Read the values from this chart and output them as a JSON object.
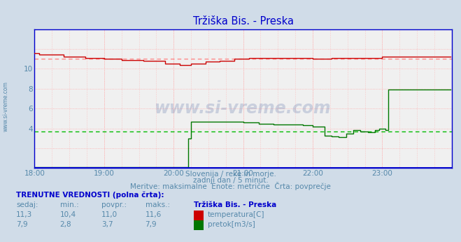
{
  "title": "Tržiška Bis. - Preska",
  "title_color": "#0000cc",
  "background_color": "#d0dce8",
  "plot_bg_color": "#f0f0f0",
  "xlim": [
    0,
    288
  ],
  "ylim_temp": [
    8,
    14
  ],
  "ylim_flow": [
    0,
    14
  ],
  "ytick_vals": [
    4,
    6,
    8,
    10
  ],
  "ytick_labels_left": [
    "4",
    "6",
    "8",
    "10"
  ],
  "xtick_labels": [
    "18:00",
    "19:00",
    "20:00",
    "21:00",
    "22:00",
    "23:00"
  ],
  "xtick_positions": [
    0,
    48,
    96,
    144,
    192,
    240
  ],
  "grid_color": "#ffaaaa",
  "temp_color": "#cc0000",
  "flow_color": "#007700",
  "avg_temp_color": "#ff8888",
  "avg_flow_color": "#00bb00",
  "avg_temp": 11.0,
  "avg_flow": 3.7,
  "border_color": "#0000cc",
  "baseline_color": "#0000cc",
  "subtitle1": "Slovenija / reke in morje.",
  "subtitle2": "zadnji dan / 5 minut.",
  "subtitle3": "Meritve: maksimalne  Enote: metrične  Črta: povprečje",
  "subtitle_color": "#5588aa",
  "table_header": "TRENUTNE VREDNOSTI (polna črta):",
  "col_headers": [
    "sedaj:",
    "min.:",
    "povpr.:",
    "maks.:",
    "Tržiška Bis. - Preska"
  ],
  "temp_row": [
    "11,3",
    "10,4",
    "11,0",
    "11,6",
    "temperatura[C]"
  ],
  "flow_row": [
    "7,9",
    "2,8",
    "3,7",
    "7,9",
    "pretok[m3/s]"
  ],
  "watermark": "www.si-vreme.com",
  "watermark_color": "#1a3a8a",
  "side_label": "www.si-vreme.com",
  "side_label_color": "#5588aa",
  "arrow_color": "#cc0000"
}
